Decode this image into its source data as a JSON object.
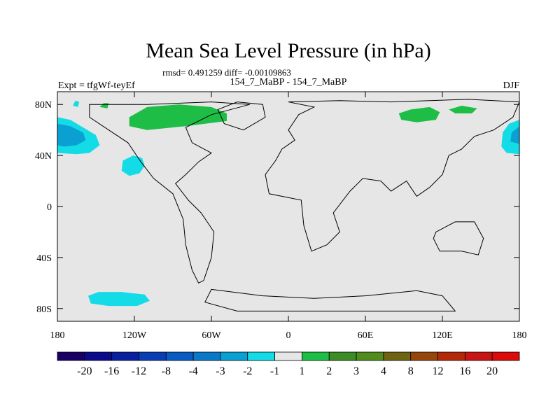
{
  "chart_data": {
    "type": "contour-map",
    "title": "Mean Sea Level Pressure (in hPa)",
    "stats_line": "rmsd= 0.491259 diff= -0.00109863",
    "left_label": "Expt = tfgWf-teyEf",
    "center_label": "154_7_MaBP - 154_7_MaBP",
    "right_label": "DJF",
    "xlim": [
      -180,
      180
    ],
    "ylim": [
      -90,
      90
    ],
    "x_ticks": [
      {
        "value": -180,
        "label": "180"
      },
      {
        "value": -120,
        "label": "120W"
      },
      {
        "value": -60,
        "label": "60W"
      },
      {
        "value": 0,
        "label": "0"
      },
      {
        "value": 60,
        "label": "60E"
      },
      {
        "value": 120,
        "label": "120E"
      },
      {
        "value": 180,
        "label": "180"
      }
    ],
    "y_ticks": [
      {
        "value": 80,
        "label": "80N"
      },
      {
        "value": 40,
        "label": "40N"
      },
      {
        "value": 0,
        "label": "0"
      },
      {
        "value": -40,
        "label": "40S"
      },
      {
        "value": -80,
        "label": "80S"
      }
    ],
    "colorbar": {
      "levels": [
        -20,
        -16,
        -12,
        -8,
        -4,
        -3,
        -2,
        -1,
        1,
        2,
        3,
        4,
        8,
        12,
        16,
        20
      ],
      "labels": [
        "-20",
        "-16",
        "-12",
        "-8",
        "-4",
        "-3",
        "-2",
        "-1",
        "1",
        "2",
        "3",
        "4",
        "8",
        "12",
        "16",
        "20"
      ],
      "colors": [
        "#1a0066",
        "#0a0a8c",
        "#0a1ea0",
        "#0a3cb4",
        "#0a5ac3",
        "#0a78c8",
        "#0aa0d2",
        "#14dce6",
        "#e6e6e6",
        "#1ebe46",
        "#3c8c28",
        "#508c1e",
        "#6e6414",
        "#96460a",
        "#b4280a",
        "#c81414",
        "#dc0a0a"
      ]
    },
    "anomaly_regions": [
      {
        "name": "north-pacific-low-west",
        "level": "-2 to -1",
        "color": "#14dce6",
        "points": [
          [
            -180,
            70
          ],
          [
            -170,
            68
          ],
          [
            -160,
            62
          ],
          [
            -150,
            56
          ],
          [
            -147,
            48
          ],
          [
            -155,
            42
          ],
          [
            -165,
            41
          ],
          [
            -180,
            42
          ]
        ]
      },
      {
        "name": "north-pacific-low-west-core",
        "level": "-3 to -2",
        "color": "#0aa0d2",
        "points": [
          [
            -180,
            65
          ],
          [
            -170,
            63
          ],
          [
            -160,
            58
          ],
          [
            -158,
            52
          ],
          [
            -165,
            48
          ],
          [
            -175,
            47
          ],
          [
            -180,
            48
          ]
        ]
      },
      {
        "name": "north-pacific-low-east",
        "level": "-2 to -1",
        "color": "#14dce6",
        "points": [
          [
            180,
            68
          ],
          [
            180,
            41
          ],
          [
            170,
            42
          ],
          [
            166,
            47
          ],
          [
            167,
            58
          ],
          [
            172,
            65
          ]
        ]
      },
      {
        "name": "north-pacific-low-east-core",
        "level": "-3 to -2",
        "color": "#0aa0d2",
        "points": [
          [
            180,
            63
          ],
          [
            180,
            49
          ],
          [
            173,
            51
          ],
          [
            174,
            58
          ]
        ]
      },
      {
        "name": "alaska-small-low",
        "level": "-2 to -1",
        "color": "#14dce6",
        "points": [
          [
            -168,
            79
          ],
          [
            -166,
            83
          ],
          [
            -163,
            82
          ],
          [
            -164,
            78
          ]
        ]
      },
      {
        "name": "northeast-pacific-low",
        "level": "-2 to -1",
        "color": "#14dce6",
        "points": [
          [
            -130,
            28
          ],
          [
            -124,
            24
          ],
          [
            -116,
            26
          ],
          [
            -112,
            32
          ],
          [
            -114,
            38
          ],
          [
            -121,
            40
          ],
          [
            -129,
            36
          ]
        ]
      },
      {
        "name": "southern-ocean-low",
        "level": "-2 to -1",
        "color": "#14dce6",
        "points": [
          [
            -156,
            -70
          ],
          [
            -148,
            -67
          ],
          [
            -130,
            -67
          ],
          [
            -112,
            -69
          ],
          [
            -108,
            -74
          ],
          [
            -118,
            -78
          ],
          [
            -140,
            -78
          ],
          [
            -154,
            -76
          ]
        ]
      },
      {
        "name": "small-arctic-high",
        "level": "1 to 2",
        "color": "#1ebe46",
        "points": [
          [
            -147,
            78
          ],
          [
            -144,
            81
          ],
          [
            -140,
            81
          ],
          [
            -141,
            77
          ]
        ]
      },
      {
        "name": "north-america-high",
        "level": "1 to 2",
        "color": "#1ebe46",
        "points": [
          [
            -124,
            70
          ],
          [
            -110,
            78
          ],
          [
            -85,
            80
          ],
          [
            -60,
            78
          ],
          [
            -48,
            73
          ],
          [
            -48,
            67
          ],
          [
            -80,
            63
          ],
          [
            -110,
            60
          ],
          [
            -124,
            63
          ]
        ]
      },
      {
        "name": "siberia-high-west",
        "level": "1 to 2",
        "color": "#1ebe46",
        "points": [
          [
            86,
            73
          ],
          [
            95,
            76
          ],
          [
            110,
            78
          ],
          [
            118,
            74
          ],
          [
            115,
            68
          ],
          [
            100,
            66
          ],
          [
            88,
            68
          ]
        ]
      },
      {
        "name": "siberia-high-east",
        "level": "1 to 2",
        "color": "#1ebe46",
        "points": [
          [
            125,
            76
          ],
          [
            135,
            79
          ],
          [
            147,
            77
          ],
          [
            143,
            73
          ],
          [
            130,
            73
          ]
        ]
      }
    ],
    "coastline": [
      {
        "name": "americas-outline",
        "points": [
          [
            -155,
            80
          ],
          [
            -110,
            80
          ],
          [
            -60,
            82
          ],
          [
            -30,
            80
          ],
          [
            -60,
            72
          ],
          [
            -80,
            62
          ],
          [
            -75,
            50
          ],
          [
            -60,
            42
          ],
          [
            -70,
            35
          ],
          [
            -80,
            25
          ],
          [
            -88,
            18
          ],
          [
            -78,
            5
          ],
          [
            -68,
            -5
          ],
          [
            -58,
            -20
          ],
          [
            -60,
            -40
          ],
          [
            -66,
            -58
          ],
          [
            -70,
            -60
          ],
          [
            -75,
            -50
          ],
          [
            -80,
            -30
          ],
          [
            -82,
            -10
          ],
          [
            -90,
            10
          ],
          [
            -105,
            22
          ],
          [
            -115,
            35
          ],
          [
            -125,
            50
          ],
          [
            -140,
            60
          ],
          [
            -155,
            70
          ]
        ]
      },
      {
        "name": "afro-eurasia-outline",
        "points": [
          [
            0,
            82
          ],
          [
            40,
            83
          ],
          [
            80,
            82
          ],
          [
            140,
            84
          ],
          [
            180,
            82
          ],
          [
            175,
            70
          ],
          [
            160,
            60
          ],
          [
            145,
            55
          ],
          [
            135,
            45
          ],
          [
            125,
            40
          ],
          [
            120,
            25
          ],
          [
            110,
            15
          ],
          [
            100,
            8
          ],
          [
            92,
            20
          ],
          [
            80,
            12
          ],
          [
            72,
            20
          ],
          [
            58,
            22
          ],
          [
            48,
            12
          ],
          [
            35,
            -5
          ],
          [
            40,
            -20
          ],
          [
            30,
            -30
          ],
          [
            18,
            -35
          ],
          [
            12,
            -15
          ],
          [
            10,
            5
          ],
          [
            -15,
            10
          ],
          [
            -18,
            25
          ],
          [
            -10,
            36
          ],
          [
            -5,
            45
          ],
          [
            5,
            52
          ],
          [
            0,
            60
          ],
          [
            8,
            72
          ],
          [
            20,
            78
          ]
        ]
      },
      {
        "name": "greenland-outline",
        "points": [
          [
            -40,
            82
          ],
          [
            -20,
            80
          ],
          [
            -18,
            70
          ],
          [
            -35,
            60
          ],
          [
            -50,
            65
          ],
          [
            -55,
            76
          ]
        ]
      },
      {
        "name": "australia-outline",
        "points": [
          [
            115,
            -20
          ],
          [
            130,
            -12
          ],
          [
            145,
            -12
          ],
          [
            152,
            -25
          ],
          [
            148,
            -38
          ],
          [
            135,
            -35
          ],
          [
            118,
            -35
          ],
          [
            113,
            -25
          ]
        ]
      },
      {
        "name": "antarctica-outline",
        "points": [
          [
            -60,
            -65
          ],
          [
            -20,
            -70
          ],
          [
            20,
            -72
          ],
          [
            60,
            -70
          ],
          [
            100,
            -66
          ],
          [
            120,
            -70
          ],
          [
            130,
            -82
          ],
          [
            -40,
            -82
          ],
          [
            -65,
            -75
          ]
        ]
      }
    ]
  }
}
